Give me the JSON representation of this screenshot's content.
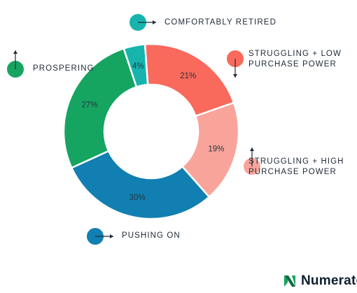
{
  "chart_data": {
    "type": "pie",
    "donut": true,
    "slices": [
      {
        "label": "COMFORTABLY RETIRED",
        "value": 4,
        "value_label": "4%",
        "color": "#17b3ad"
      },
      {
        "label": "STRUGGLING + LOW PURCHASE POWER",
        "value": 21,
        "value_label": "21%",
        "color": "#f9695c"
      },
      {
        "label": "STRUGGLING + HIGH PURCHASE POWER",
        "value": 19,
        "value_label": "19%",
        "color": "#f9a49a"
      },
      {
        "label": "PUSHING ON",
        "value": 30,
        "value_label": "30%",
        "color": "#117fb1"
      },
      {
        "label": "PROSPERING",
        "value": 27,
        "value_label": "27%",
        "color": "#16a561"
      }
    ],
    "legend": {
      "comfortably_retired": {
        "label": "COMFORTABLY RETIRED",
        "arrow": "right",
        "color": "#17b3ad"
      },
      "struggling_low": {
        "lines": [
          "STRUGGLING + LOW",
          "PURCHASE POWER"
        ],
        "arrow": "down",
        "color": "#f9695c"
      },
      "struggling_high": {
        "lines": [
          "STRUGGLING + HIGH",
          "PURCHASE POWER"
        ],
        "arrow": "up",
        "color": "#f9a49a"
      },
      "pushing_on": {
        "label": "PUSHING ON",
        "arrow": "right",
        "color": "#117fb1"
      },
      "prospering": {
        "label": "PROSPERING",
        "arrow": "up",
        "color": "#16a561"
      }
    }
  },
  "brand": {
    "name": "Numerator",
    "logo_icon": "numerator-logo-icon",
    "color": "#16a561"
  }
}
